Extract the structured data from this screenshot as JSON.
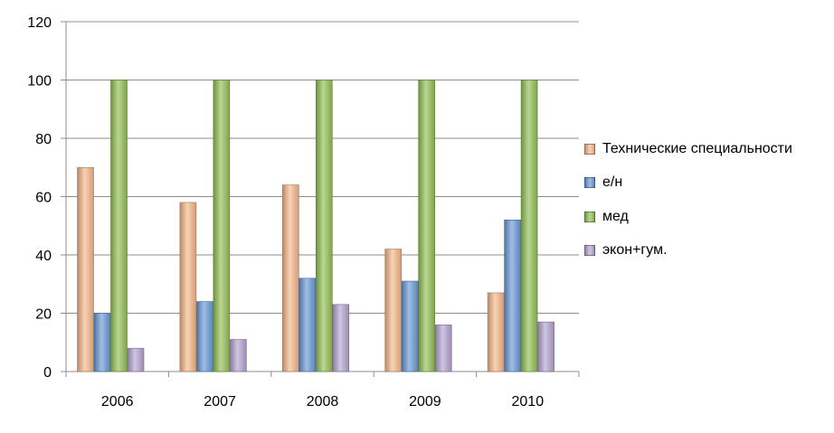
{
  "chart_data": {
    "type": "bar",
    "title": "",
    "xlabel": "",
    "ylabel": "",
    "categories": [
      "2006",
      "2007",
      "2008",
      "2009",
      "2010"
    ],
    "series": [
      {
        "name": "Технические специальности",
        "values": [
          70,
          58,
          64,
          42,
          27
        ],
        "color": "#f7b98c"
      },
      {
        "name": "е/н",
        "values": [
          20,
          24,
          32,
          31,
          52
        ],
        "color": "#6a9bd8"
      },
      {
        "name": "мед",
        "values": [
          100,
          100,
          100,
          100,
          100
        ],
        "color": "#95c155"
      },
      {
        "name": "экон+гум.",
        "values": [
          8,
          11,
          23,
          16,
          17
        ],
        "color": "#b7a5d3"
      }
    ],
    "ylim": [
      0,
      120
    ],
    "yticks": [
      "0",
      "20",
      "40",
      "60",
      "80",
      "100",
      "120"
    ],
    "grid": true,
    "legend_position": "right"
  }
}
